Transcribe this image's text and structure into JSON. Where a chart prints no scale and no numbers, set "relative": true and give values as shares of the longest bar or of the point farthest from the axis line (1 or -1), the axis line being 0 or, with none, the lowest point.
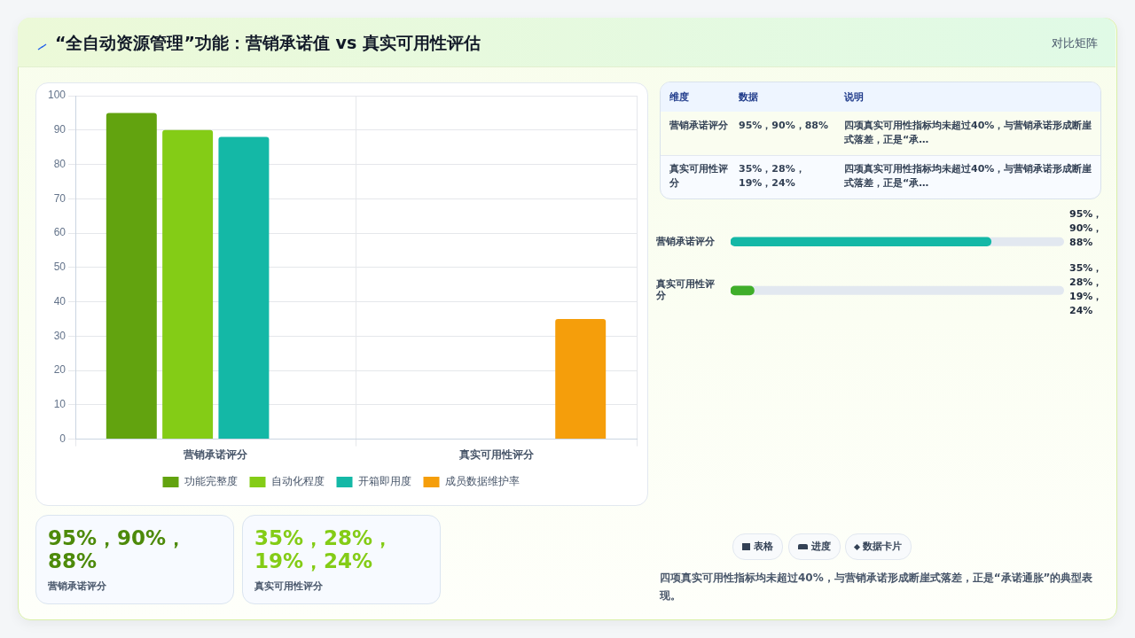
{
  "chart_data": [
    {
      "type": "other",
      "title": "“全自动资源管理”功能：营销承诺值 vs 真实可用性评估",
      "annotations": [
        "对比矩阵"
      ]
    },
    {
      "type": "bar",
      "categories": [
        "营销承诺评分",
        "真实可用性评分"
      ],
      "series": [
        {
          "name": "功能完整度",
          "color": "#62a30f",
          "values": [
            95,
            null
          ]
        },
        {
          "name": "自动化程度",
          "color": "#84cc16",
          "values": [
            90,
            null
          ]
        },
        {
          "name": "开箱即用度",
          "color": "#14b8a6",
          "values": [
            88,
            null
          ]
        },
        {
          "name": "成员数据维护率",
          "color": "#f59e0b",
          "values": [
            null,
            35
          ]
        }
      ],
      "ylim": [
        0,
        100
      ],
      "yticks": [
        0,
        10,
        20,
        30,
        40,
        50,
        60,
        70,
        80,
        90,
        100
      ],
      "grid": true,
      "legend": "bottom"
    },
    {
      "type": "other",
      "annotations": [
        "维度",
        "数据",
        "说明",
        "营销承诺评分",
        "95%，90%，88%",
        "四项真实可用性指标均未超过40%，与营销承诺形成断崖式落差，正是“承…",
        "真实可用性评分",
        "35%，28%，19%，24%",
        "四项真实可用性指标均未超过40%，与营销承诺形成断崖式落差，正是“承…"
      ]
    },
    {
      "type": "bar",
      "orientation": "horizontal",
      "relative": true,
      "categories": [
        "营销承诺评分",
        "真实可用性评分"
      ],
      "values": [
        1,
        0.09
      ],
      "colors": [
        "#14b8a6",
        "#3fae2a"
      ],
      "annotations": [
        "95%，90%，88%",
        "35%，28%，19%，24%"
      ]
    },
    {
      "type": "other",
      "annotations": [
        "95%，90%，88%",
        "营销承诺评分",
        "35%，28%，19%，24%",
        "真实可用性评分",
        "表格",
        "进度",
        "数据卡片",
        "四项真实可用性指标均未超过40%，与营销承诺形成断崖式落差，正是“承诺通胀”的典型表现。"
      ]
    }
  ]
}
